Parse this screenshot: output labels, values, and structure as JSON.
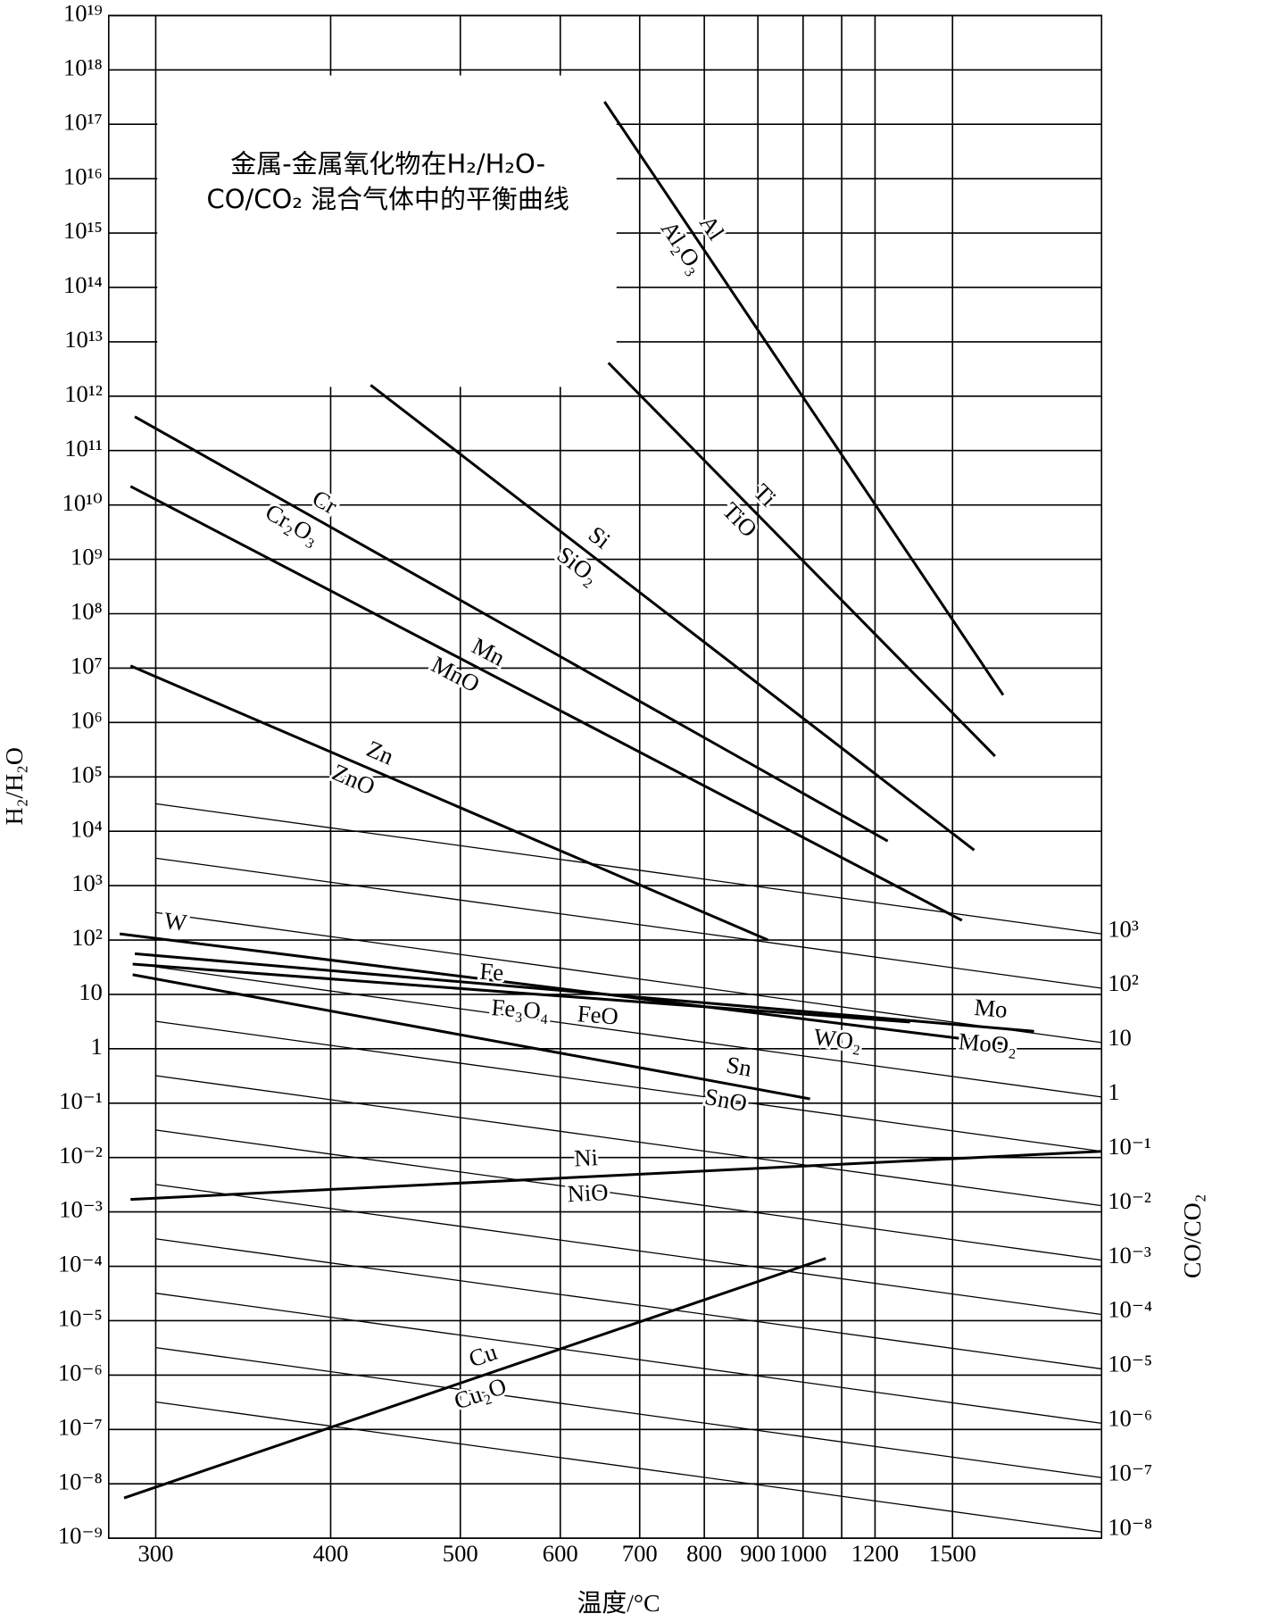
{
  "chart_data": {
    "type": "line",
    "title": [
      "金属-金属氧化物在H₂/H₂O-",
      "CO/CO₂ 混合气体中的平衡曲线"
    ],
    "x_label": "温度/°C",
    "y_label": "H₂/H₂O",
    "y2_label": "CO/CO₂",
    "xscale": "inverse-kelvin",
    "yscale": "log",
    "y2scale": "log",
    "grid": true,
    "line_color": "#000000",
    "xlim": [
      278,
      2642
    ],
    "xticks": [
      300,
      400,
      500,
      600,
      700,
      800,
      900,
      1000,
      1200,
      1500
    ],
    "xgrid": [
      300,
      400,
      500,
      600,
      700,
      800,
      900,
      1000,
      1100,
      1200,
      1500
    ],
    "ylim": [
      1e-09,
      1e+19
    ],
    "yticks": [
      {
        "value": 1e+19,
        "label": "10¹⁹"
      },
      {
        "value": 1e+18,
        "label": "10¹⁸"
      },
      {
        "value": 1e+17,
        "label": "10¹⁷"
      },
      {
        "value": 1e+16,
        "label": "10¹⁶"
      },
      {
        "value": 1000000000000000.0,
        "label": "10¹⁵"
      },
      {
        "value": 100000000000000.0,
        "label": "10¹⁴"
      },
      {
        "value": 10000000000000.0,
        "label": "10¹³"
      },
      {
        "value": 1000000000000.0,
        "label": "10¹²"
      },
      {
        "value": 100000000000.0,
        "label": "10¹¹"
      },
      {
        "value": 10000000000.0,
        "label": "10¹⁰"
      },
      {
        "value": 1000000000.0,
        "label": "10⁹"
      },
      {
        "value": 100000000.0,
        "label": "10⁸"
      },
      {
        "value": 10000000.0,
        "label": "10⁷"
      },
      {
        "value": 1000000.0,
        "label": "10⁶"
      },
      {
        "value": 100000.0,
        "label": "10⁵"
      },
      {
        "value": 10000.0,
        "label": "10⁴"
      },
      {
        "value": 1000.0,
        "label": "10³"
      },
      {
        "value": 100,
        "label": "10²"
      },
      10,
      1,
      {
        "value": 0.1,
        "label": "10⁻¹"
      },
      {
        "value": 0.01,
        "label": "10⁻²"
      },
      {
        "value": 0.001,
        "label": "10⁻³"
      },
      {
        "value": 0.0001,
        "label": "10⁻⁴"
      },
      {
        "value": 1e-05,
        "label": "10⁻⁵"
      },
      {
        "value": 1e-06,
        "label": "10⁻⁶"
      },
      {
        "value": 1e-07,
        "label": "10⁻⁷"
      },
      {
        "value": 1e-08,
        "label": "10⁻⁸"
      },
      {
        "value": 1e-09,
        "label": "10⁻⁹"
      }
    ],
    "y2lim": [
      6.9e-09,
      6.9e+19
    ],
    "y2ticks": [
      {
        "value": 1000,
        "label": "10³"
      },
      {
        "value": 100,
        "label": "10²"
      },
      10,
      1,
      {
        "value": 0.1,
        "label": "10⁻¹"
      },
      {
        "value": 0.01,
        "label": "10⁻²"
      },
      {
        "value": 0.001,
        "label": "10⁻³"
      },
      {
        "value": 0.0001,
        "label": "10⁻⁴"
      },
      {
        "value": 1e-05,
        "label": "10⁻⁵"
      },
      {
        "value": 1e-06,
        "label": "10⁻⁶"
      },
      {
        "value": 1e-07,
        "label": "10⁻⁷"
      },
      {
        "value": 1e-08,
        "label": "10⁻⁸"
      }
    ],
    "series": [
      {
        "labels": [
          "Al",
          "Al₂O₃"
        ],
        "x": [
          653,
          1772
        ],
        "values": [
          2.6e+17,
          3200000.0
        ]
      },
      {
        "labels": [
          "Ti",
          "TiO"
        ],
        "x": [
          658,
          1723
        ],
        "values": [
          4100000000000.0,
          240000.0
        ]
      },
      {
        "labels": [
          "Si",
          "SiO₂"
        ],
        "x": [
          428,
          1607
        ],
        "values": [
          1600000000000.0,
          4500
        ]
      },
      {
        "labels": [
          "Cr",
          "Cr₂O₃"
        ],
        "x": [
          290,
          1242
        ],
        "values": [
          420000000000.0,
          6600
        ]
      },
      {
        "labels": [
          "Mn",
          "MnO"
        ],
        "x": [
          288,
          1545
        ],
        "values": [
          22000000000.0,
          230
        ]
      },
      {
        "labels": [
          "Zn",
          "ZnO"
        ],
        "x": [
          288,
          921
        ],
        "values": [
          11000000.0,
          100
        ]
      },
      {
        "labels": [
          "W",
          "WO₂"
        ],
        "x": [
          283,
          1806
        ],
        "values": [
          130,
          1.2
        ]
      },
      {
        "labels": [
          "Mo",
          "MoO₂"
        ],
        "x": [
          290,
          1984
        ],
        "values": [
          56,
          2.1
        ]
      },
      {
        "labels": [
          "Fe",
          "Fe₃O₄",
          "FeO"
        ],
        "x": [
          289,
          1322
        ],
        "values": [
          36,
          3.1
        ]
      },
      {
        "labels": [
          "Sn",
          "SnO"
        ],
        "x": [
          289,
          1017
        ],
        "values": [
          23,
          0.12
        ]
      },
      {
        "labels": [
          "Ni",
          "NiO"
        ],
        "x": [
          288,
          2642
        ],
        "values": [
          0.0017,
          0.013
        ]
      },
      {
        "labels": [
          "Cu",
          "Cu₂O"
        ],
        "x": [
          285,
          1057
        ],
        "values": [
          5.5e-09,
          0.00014
        ]
      }
    ],
    "reference_lines": [
      {
        "x": [
          300,
          2642
        ],
        "values": [
          32000,
          130
        ]
      },
      {
        "x": [
          300,
          2642
        ],
        "values": [
          3200,
          13
        ]
      },
      {
        "x": [
          300,
          2642
        ],
        "values": [
          320,
          1.3
        ]
      },
      {
        "x": [
          300,
          2642
        ],
        "values": [
          32,
          0.13
        ]
      },
      {
        "x": [
          300,
          2642
        ],
        "values": [
          3.2,
          0.013
        ]
      },
      {
        "x": [
          300,
          2642
        ],
        "values": [
          0.32,
          0.0013
        ]
      },
      {
        "x": [
          300,
          2642
        ],
        "values": [
          0.032,
          0.00013
        ]
      },
      {
        "x": [
          300,
          2642
        ],
        "values": [
          0.0032,
          1.3e-05
        ]
      },
      {
        "x": [
          300,
          2642
        ],
        "values": [
          0.00032,
          1.3e-06
        ]
      },
      {
        "x": [
          300,
          2642
        ],
        "values": [
          3.2e-05,
          1.3e-07
        ]
      },
      {
        "x": [
          300,
          2642
        ],
        "values": [
          3.2e-06,
          1.3e-08
        ]
      },
      {
        "x": [
          300,
          2642
        ],
        "values": [
          3.2e-07,
          1.3e-09
        ]
      }
    ]
  }
}
